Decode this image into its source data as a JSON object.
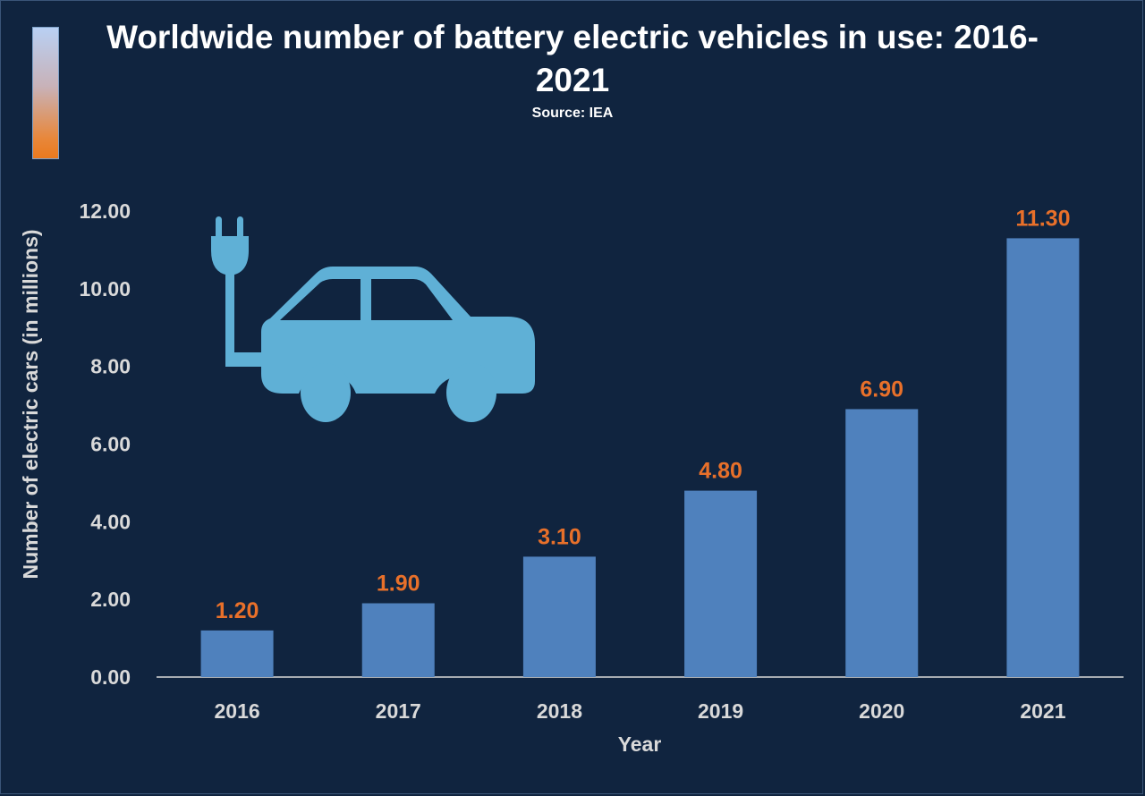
{
  "chart_data": {
    "type": "bar",
    "title": "Worldwide number of battery electric vehicles in use: 2016- 2021",
    "subtitle": "Source: IEA",
    "xlabel": "Year",
    "ylabel": "Number of electric cars (in millions)",
    "categories": [
      "2016",
      "2017",
      "2018",
      "2019",
      "2020",
      "2021"
    ],
    "values": [
      1.2,
      1.9,
      3.1,
      4.8,
      6.9,
      11.3
    ],
    "data_labels": [
      "1.20",
      "1.90",
      "3.10",
      "4.80",
      "6.90",
      "11.30"
    ],
    "ylim": [
      0,
      12
    ],
    "yticks": [
      "0.00",
      "2.00",
      "4.00",
      "6.00",
      "8.00",
      "10.00",
      "12.00"
    ],
    "grid": false,
    "legend": "none"
  },
  "colors": {
    "background": "#10243f",
    "bar": "#4f81bd",
    "data_label": "#e8702a",
    "axis_text": "#d9d9d9",
    "title_text": "#ffffff",
    "icon": "#5fb0d6"
  },
  "icon": {
    "name": "electric-car-plug-icon"
  }
}
